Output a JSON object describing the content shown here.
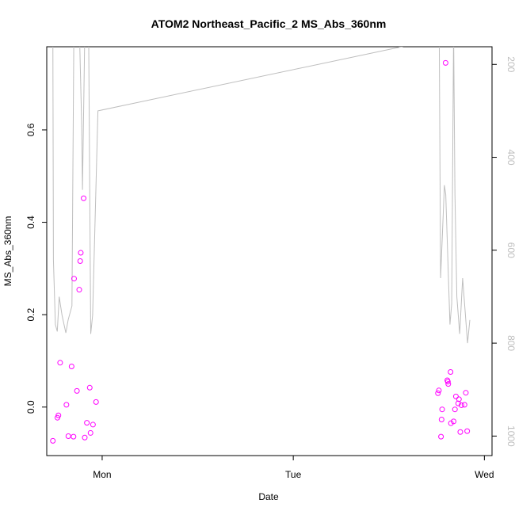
{
  "chart_data": {
    "type": "scatter",
    "title": "ATOM2 Northeast_Pacific_2 MS_Abs_360nm",
    "xlabel": "Date",
    "ylabel": "MS_Abs_360nm",
    "x_ticks": [
      {
        "value": 0,
        "label": "Mon"
      },
      {
        "value": 1,
        "label": "Tue"
      },
      {
        "value": 2,
        "label": "Wed"
      }
    ],
    "xlim": [
      -0.29,
      2.04
    ],
    "ylim": [
      -0.105,
      0.78
    ],
    "y_ticks": [
      0.0,
      0.2,
      0.4,
      0.6
    ],
    "y_tick_labels": [
      "0.0",
      "0.2",
      "0.4",
      "0.6"
    ],
    "y2_ticks": [
      200,
      400,
      600,
      800,
      1000
    ],
    "y2_tick_labels": [
      "200",
      "400",
      "600",
      "800",
      "1000"
    ],
    "y2lim": [
      1042,
      162
    ],
    "grid": false,
    "series": [
      {
        "kind": "points",
        "color": "#ff00ff",
        "x": [
          -0.258,
          -0.234,
          -0.22,
          -0.229,
          -0.187,
          -0.177,
          -0.16,
          -0.15,
          -0.147,
          -0.132,
          -0.12,
          -0.112,
          -0.115,
          -0.097,
          -0.091,
          -0.08,
          -0.065,
          -0.061,
          -0.048,
          -0.032,
          1.757,
          1.762,
          1.773,
          1.776,
          1.779,
          1.797,
          1.806,
          1.809,
          1.811,
          1.823,
          1.825,
          1.839,
          1.846,
          1.851,
          1.863,
          1.867,
          1.874,
          1.88,
          1.896,
          1.903,
          1.91
        ],
        "y": [
          -0.073,
          -0.023,
          0.096,
          -0.018,
          0.005,
          -0.063,
          0.088,
          -0.064,
          0.278,
          0.035,
          0.254,
          0.334,
          0.316,
          0.452,
          -0.066,
          -0.034,
          0.042,
          -0.056,
          -0.038,
          0.011,
          0.03,
          0.036,
          -0.064,
          -0.027,
          -0.005,
          0.745,
          0.058,
          0.055,
          0.05,
          0.076,
          -0.035,
          -0.031,
          -0.005,
          0.023,
          0.008,
          0.017,
          -0.054,
          0.004,
          0.005,
          0.031,
          -0.052
        ]
      },
      {
        "kind": "line",
        "axis": "right",
        "color": "#bebebe",
        "x": [
          -0.258,
          -0.255,
          -0.245,
          -0.235,
          -0.225,
          -0.21,
          -0.19,
          -0.178,
          -0.158,
          -0.148,
          -0.136,
          -0.12,
          -0.107,
          -0.103,
          -0.09,
          -0.078,
          -0.071,
          -0.06,
          -0.05,
          -0.022,
          1.764,
          1.771,
          1.791,
          1.798,
          1.82,
          1.829,
          1.839,
          1.846,
          1.856,
          1.871,
          1.886,
          1.912,
          1.924
        ],
        "y": [
          130,
          620,
          760,
          775,
          700,
          740,
          778,
          750,
          720,
          110,
          110,
          110,
          330,
          470,
          110,
          110,
          110,
          780,
          740,
          300,
          145,
          660,
          460,
          480,
          760,
          715,
          130,
          480,
          700,
          780,
          660,
          800,
          750
        ]
      }
    ]
  }
}
